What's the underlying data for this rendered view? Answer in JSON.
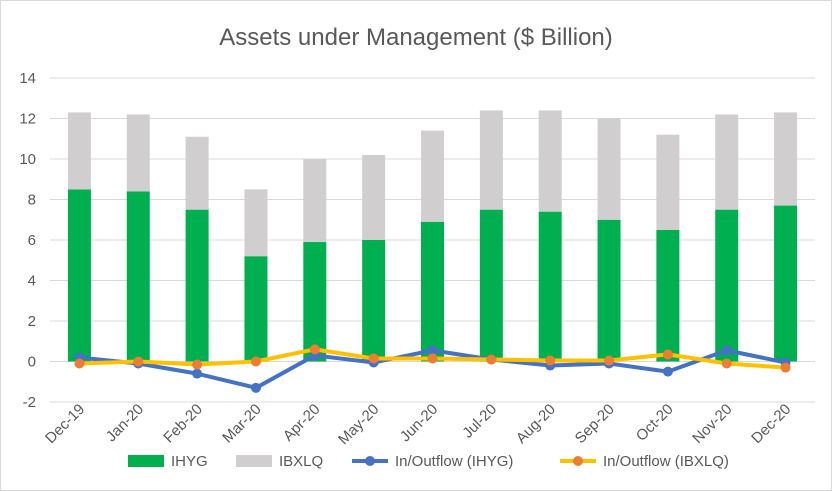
{
  "chart_data": {
    "type": "bar",
    "title": "Assets under Management ($ Billion)",
    "categories": [
      "Dec-19",
      "Jan-20",
      "Feb-20",
      "Mar-20",
      "Apr-20",
      "May-20",
      "Jun-20",
      "Jul-20",
      "Aug-20",
      "Sep-20",
      "Oct-20",
      "Nov-20",
      "Dec-20"
    ],
    "ylim": [
      -2,
      14
    ],
    "yticks": [
      -2,
      0,
      2,
      4,
      6,
      8,
      10,
      12,
      14
    ],
    "grid": true,
    "legend_position": "bottom",
    "stacked": true,
    "series": [
      {
        "name": "IHYG",
        "kind": "bar",
        "color": "#00b050",
        "values": [
          8.5,
          8.4,
          7.5,
          5.2,
          5.9,
          6.0,
          6.9,
          7.5,
          7.4,
          7.0,
          6.5,
          7.5,
          7.7
        ]
      },
      {
        "name": "IBXLQ",
        "kind": "bar",
        "color": "#d0cece",
        "values": [
          3.8,
          3.8,
          3.6,
          3.3,
          4.1,
          4.2,
          4.5,
          4.9,
          5.0,
          5.0,
          4.7,
          4.7,
          4.6
        ]
      },
      {
        "name": "In/Outflow (IHYG)",
        "kind": "line",
        "color": "#4472c4",
        "values": [
          0.2,
          -0.1,
          -0.6,
          -1.3,
          0.3,
          -0.05,
          0.55,
          0.1,
          -0.2,
          -0.1,
          -0.5,
          0.55,
          -0.05
        ]
      },
      {
        "name": "In/Outflow (IBXLQ)",
        "kind": "line",
        "color": "#ffc000",
        "marker_color": "#ed7d31",
        "values": [
          -0.1,
          0.0,
          -0.15,
          0.0,
          0.6,
          0.15,
          0.15,
          0.1,
          0.05,
          0.05,
          0.35,
          -0.1,
          -0.3
        ]
      }
    ]
  }
}
